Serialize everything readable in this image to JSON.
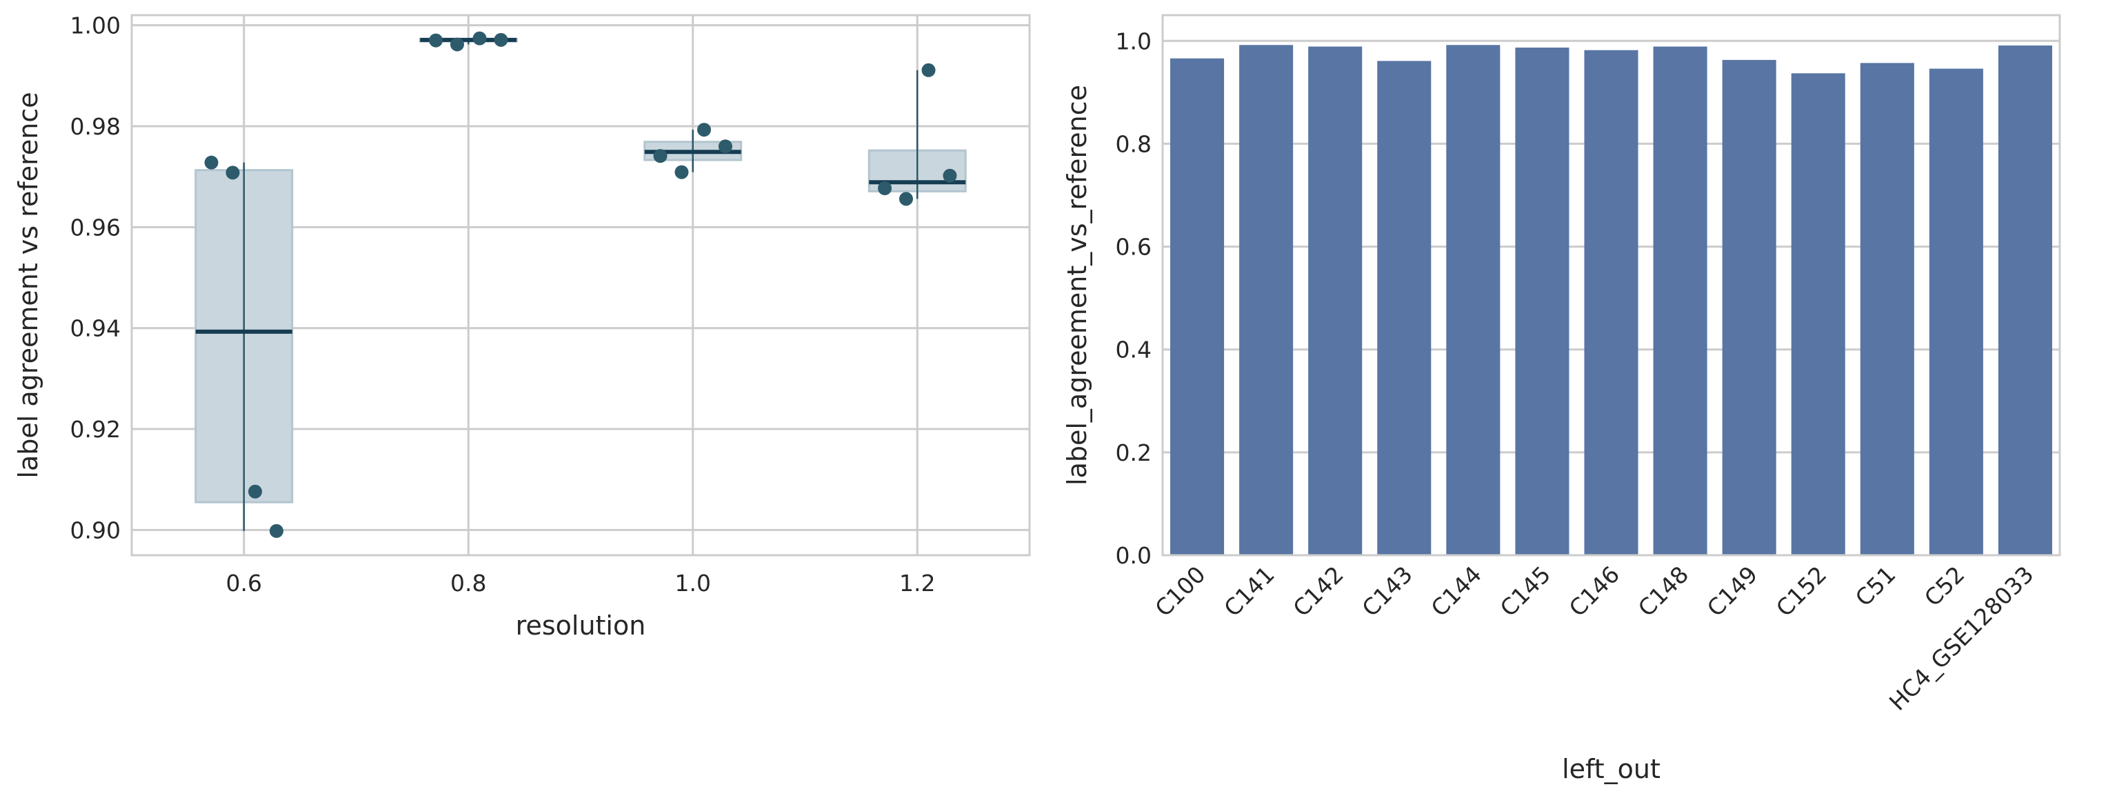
{
  "chart_data": [
    {
      "type": "box",
      "xlabel": "resolution",
      "ylabel": "label agreement vs reference",
      "categories": [
        "0.6",
        "0.8",
        "1.0",
        "1.2"
      ],
      "ylim": [
        0.895,
        1.002
      ],
      "yticks": [
        "0.90",
        "0.92",
        "0.94",
        "0.96",
        "0.98",
        "1.00"
      ],
      "grid": true,
      "colors": {
        "box_fill": "#c9d6dd",
        "box_edge": "#b3c5cf",
        "median": "#163d52",
        "whisker": "#2d5668",
        "point": "#2d5b6c"
      },
      "boxes": [
        {
          "category": "0.6",
          "q1": 0.9055,
          "median": 0.9393,
          "q3": 0.9713,
          "whisker_low": 0.8998,
          "whisker_high": 0.9728
        },
        {
          "category": "0.8",
          "q1": 0.9968,
          "median": 0.9971,
          "q3": 0.9973,
          "whisker_low": 0.9962,
          "whisker_high": 0.9974
        },
        {
          "category": "1.0",
          "q1": 0.9733,
          "median": 0.9749,
          "q3": 0.9769,
          "whisker_low": 0.9709,
          "whisker_high": 0.9793
        },
        {
          "category": "1.2",
          "q1": 0.9671,
          "median": 0.9689,
          "q3": 0.9752,
          "whisker_low": 0.9656,
          "whisker_high": 0.9911
        }
      ],
      "points": [
        {
          "category": "0.6",
          "jitter": -0.29,
          "y": 0.9728
        },
        {
          "category": "0.6",
          "jitter": -0.1,
          "y": 0.9708
        },
        {
          "category": "0.6",
          "jitter": 0.1,
          "y": 0.9076
        },
        {
          "category": "0.6",
          "jitter": 0.29,
          "y": 0.8998
        },
        {
          "category": "0.8",
          "jitter": -0.29,
          "y": 0.997
        },
        {
          "category": "0.8",
          "jitter": -0.1,
          "y": 0.9962
        },
        {
          "category": "0.8",
          "jitter": 0.1,
          "y": 0.9974
        },
        {
          "category": "0.8",
          "jitter": 0.29,
          "y": 0.9971
        },
        {
          "category": "1.0",
          "jitter": -0.29,
          "y": 0.9741
        },
        {
          "category": "1.0",
          "jitter": -0.1,
          "y": 0.9709
        },
        {
          "category": "1.0",
          "jitter": 0.1,
          "y": 0.9793
        },
        {
          "category": "1.0",
          "jitter": 0.29,
          "y": 0.976
        },
        {
          "category": "1.2",
          "jitter": -0.29,
          "y": 0.9677
        },
        {
          "category": "1.2",
          "jitter": -0.1,
          "y": 0.9656
        },
        {
          "category": "1.2",
          "jitter": 0.1,
          "y": 0.9911
        },
        {
          "category": "1.2",
          "jitter": 0.29,
          "y": 0.9702
        }
      ]
    },
    {
      "type": "bar",
      "xlabel": "left_out",
      "ylabel": "label_agreement_vs_reference",
      "categories": [
        "C100",
        "C141",
        "C142",
        "C143",
        "C144",
        "C145",
        "C146",
        "C148",
        "C149",
        "C152",
        "C51",
        "C52",
        "HC4_GSE128033"
      ],
      "values": [
        0.966,
        0.992,
        0.989,
        0.961,
        0.992,
        0.987,
        0.982,
        0.989,
        0.963,
        0.937,
        0.957,
        0.946,
        0.991
      ],
      "ylim": [
        0,
        1.05
      ],
      "yticks": [
        "0.0",
        "0.2",
        "0.4",
        "0.6",
        "0.8",
        "1.0"
      ],
      "grid": true,
      "colors": {
        "bar": "#5875a4"
      }
    }
  ]
}
